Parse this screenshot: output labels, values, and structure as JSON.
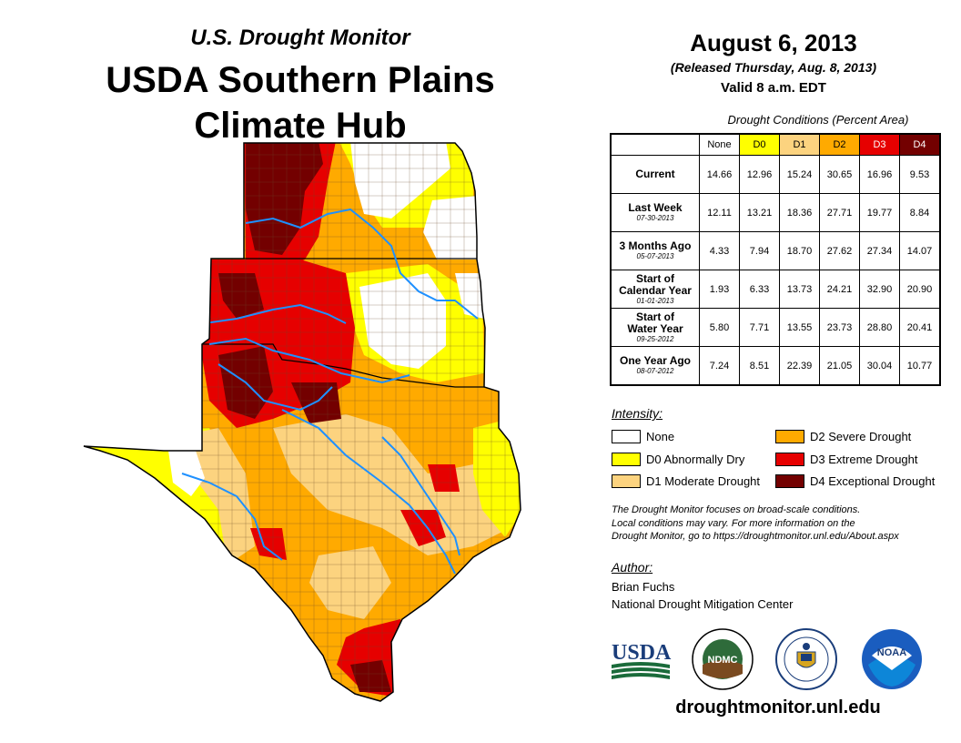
{
  "header": {
    "subtitle": "U.S. Drought Monitor",
    "title_line1": "USDA Southern Plains",
    "title_line2": "Climate Hub"
  },
  "release": {
    "date": "August 6, 2013",
    "released": "(Released Thursday, Aug. 8, 2013)",
    "valid": "Valid 8 a.m. EDT"
  },
  "table": {
    "caption": "Drought Conditions (Percent Area)",
    "columns": [
      {
        "label": "None",
        "color": "#ffffff"
      },
      {
        "label": "D0",
        "color": "#ffff00"
      },
      {
        "label": "D1",
        "color": "#fcd37f"
      },
      {
        "label": "D2",
        "color": "#ffaa00"
      },
      {
        "label": "D3",
        "color": "#e60000"
      },
      {
        "label": "D4",
        "color": "#730000"
      }
    ],
    "rows": [
      {
        "label": "Current",
        "label2": "",
        "date": "",
        "values": [
          "14.66",
          "12.96",
          "15.24",
          "30.65",
          "16.96",
          "9.53"
        ]
      },
      {
        "label": "Last Week",
        "label2": "",
        "date": "07-30-2013",
        "values": [
          "12.11",
          "13.21",
          "18.36",
          "27.71",
          "19.77",
          "8.84"
        ]
      },
      {
        "label": "3 Months Ago",
        "label2": "",
        "date": "05-07-2013",
        "values": [
          "4.33",
          "7.94",
          "18.70",
          "27.62",
          "27.34",
          "14.07"
        ]
      },
      {
        "label": "Start of",
        "label2": "Calendar Year",
        "date": "01-01-2013",
        "values": [
          "1.93",
          "6.33",
          "13.73",
          "24.21",
          "32.90",
          "20.90"
        ]
      },
      {
        "label": "Start of",
        "label2": "Water Year",
        "date": "09-25-2012",
        "values": [
          "5.80",
          "7.71",
          "13.55",
          "23.73",
          "28.80",
          "20.41"
        ]
      },
      {
        "label": "One Year Ago",
        "label2": "",
        "date": "08-07-2012",
        "values": [
          "7.24",
          "8.51",
          "22.39",
          "21.05",
          "30.04",
          "10.77"
        ]
      }
    ]
  },
  "legend": {
    "title": "Intensity:",
    "items": [
      {
        "label": "None",
        "color": "#ffffff"
      },
      {
        "label": "D0 Abnormally Dry",
        "color": "#ffff00"
      },
      {
        "label": "D1 Moderate Drought",
        "color": "#fcd37f"
      },
      {
        "label": "D2 Severe Drought",
        "color": "#ffaa00"
      },
      {
        "label": "D3 Extreme Drought",
        "color": "#e60000"
      },
      {
        "label": "D4 Exceptional Drought",
        "color": "#730000"
      }
    ]
  },
  "note": {
    "line1": "The Drought Monitor focuses on broad-scale conditions.",
    "line2": "Local conditions may vary. For more information on the",
    "line3": "Drought Monitor, go to https://droughtmonitor.unl.edu/About.aspx"
  },
  "author": {
    "title": "Author:",
    "name": "Brian Fuchs",
    "org": "National Drought Mitigation Center"
  },
  "logos": {
    "usda": "USDA",
    "ndmc": "NDMC",
    "doc": "department-of-commerce-seal",
    "noaa": "NOAA"
  },
  "website": "droughtmonitor.unl.edu",
  "colors": {
    "river": "#1e90ff",
    "county_line": "#6b4b2a"
  }
}
